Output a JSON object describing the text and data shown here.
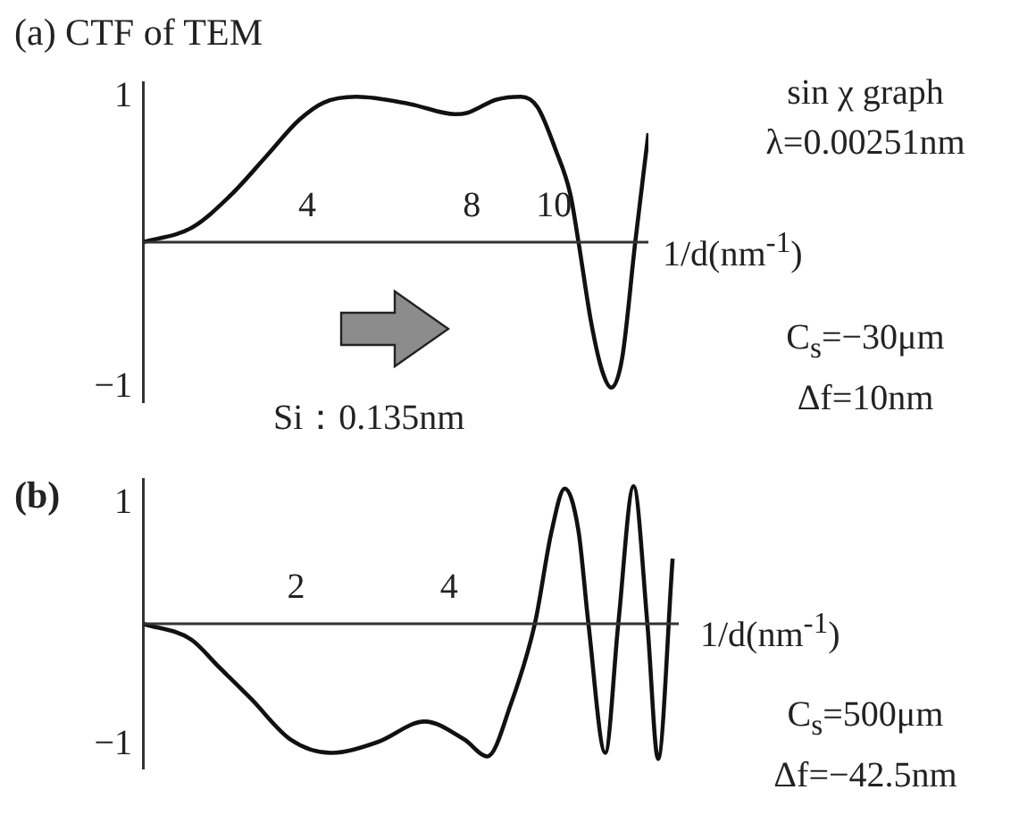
{
  "chart_data": [
    {
      "type": "line",
      "title": "(a) CTF of TEM",
      "xlabel": "1/d(nm$^{-1}$)",
      "xlim": [
        0,
        12.3
      ],
      "xticks": [
        4,
        8,
        10
      ],
      "ylim": [
        -1.1,
        1.1
      ],
      "yticks": [
        1,
        {
          "value": -1,
          "label": "−1"
        }
      ],
      "marker": "none",
      "line_style": "solid",
      "series": [
        {
          "color": "#111111",
          "x": [
            0,
            1.19,
            2.16,
            3.0,
            3.8,
            4.4,
            5.2,
            6.5,
            7.6,
            7.9,
            8.6,
            9.2,
            9.6,
            10.05,
            10.4,
            10.6,
            10.9,
            11.17,
            11.4,
            11.66,
            11.98,
            12.3
          ],
          "values": [
            0,
            0.1,
            0.33,
            0.59,
            0.84,
            0.96,
            1.0,
            0.95,
            0.88,
            0.89,
            0.98,
            1.0,
            0.93,
            0.63,
            0.33,
            0,
            -0.54,
            -0.88,
            -1.0,
            -0.8,
            0,
            0.75
          ]
        }
      ],
      "annotations": [
        "sin χ graph",
        "λ=0.00251nm",
        "C$_{s}$=−30μm",
        "Δf=10nm",
        "Si：0.135nm"
      ]
    },
    {
      "type": "line",
      "title": "(b)",
      "xlabel": "1/d(nm$^{-1}$)",
      "xlim": [
        0,
        7
      ],
      "xticks": [
        2,
        4
      ],
      "ylim": [
        -1.2,
        1.2
      ],
      "yticks": [
        1,
        {
          "value": -1,
          "label": "−1"
        }
      ],
      "marker": "none",
      "line_style": "solid",
      "series": [
        {
          "color": "#111111",
          "x": [
            0,
            0.63,
            0.98,
            1.41,
            1.93,
            2.46,
            3.07,
            3.68,
            4.2,
            4.5,
            4.81,
            5.12,
            5.34,
            5.51,
            5.69,
            5.82,
            6.04,
            6.21,
            6.41,
            6.59,
            6.73,
            6.92
          ],
          "values": [
            0,
            -0.13,
            -0.35,
            -0.62,
            -0.96,
            -1.07,
            -0.98,
            -0.81,
            -0.96,
            -1.1,
            -0.66,
            0,
            0.77,
            1.12,
            0.77,
            0,
            -1.07,
            0,
            1.14,
            0,
            -1.12,
            0.54
          ]
        }
      ],
      "annotations": [
        "C$_{s}$=500μm",
        "Δf=−42.5nm"
      ]
    }
  ]
}
